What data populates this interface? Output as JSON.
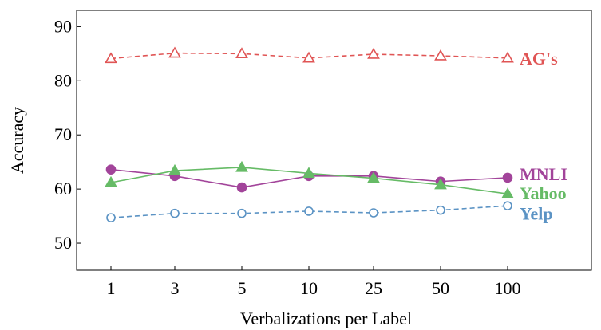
{
  "chart_data": {
    "type": "line",
    "title": "",
    "xlabel": "Verbalizations per Label",
    "ylabel": "Accuracy",
    "categories": [
      "1",
      "3",
      "5",
      "10",
      "25",
      "50",
      "100"
    ],
    "y_ticks": [
      "50",
      "60",
      "70",
      "80",
      "90"
    ],
    "ylim": [
      45,
      93
    ],
    "grid": false,
    "legend": "inline-right-of-lines",
    "series": [
      {
        "name": "AG's",
        "values": [
          84.1,
          85.1,
          85.0,
          84.2,
          84.9,
          84.6,
          84.2
        ],
        "color": "#e05555",
        "marker": "triangle-open",
        "dash": true
      },
      {
        "name": "MNLI",
        "values": [
          63.6,
          62.4,
          60.3,
          62.4,
          62.4,
          61.4,
          62.1
        ],
        "color": "#a2449a",
        "marker": "circle-filled",
        "dash": false
      },
      {
        "name": "Yahoo",
        "values": [
          61.2,
          63.4,
          64.0,
          62.9,
          62.0,
          60.8,
          59.1
        ],
        "color": "#66bb66",
        "marker": "triangle-filled",
        "dash": false
      },
      {
        "name": "Yelp",
        "values": [
          54.7,
          55.5,
          55.5,
          55.9,
          55.6,
          56.1,
          56.9
        ],
        "color": "#5b93c4",
        "marker": "circle-open",
        "dash": true
      }
    ]
  }
}
